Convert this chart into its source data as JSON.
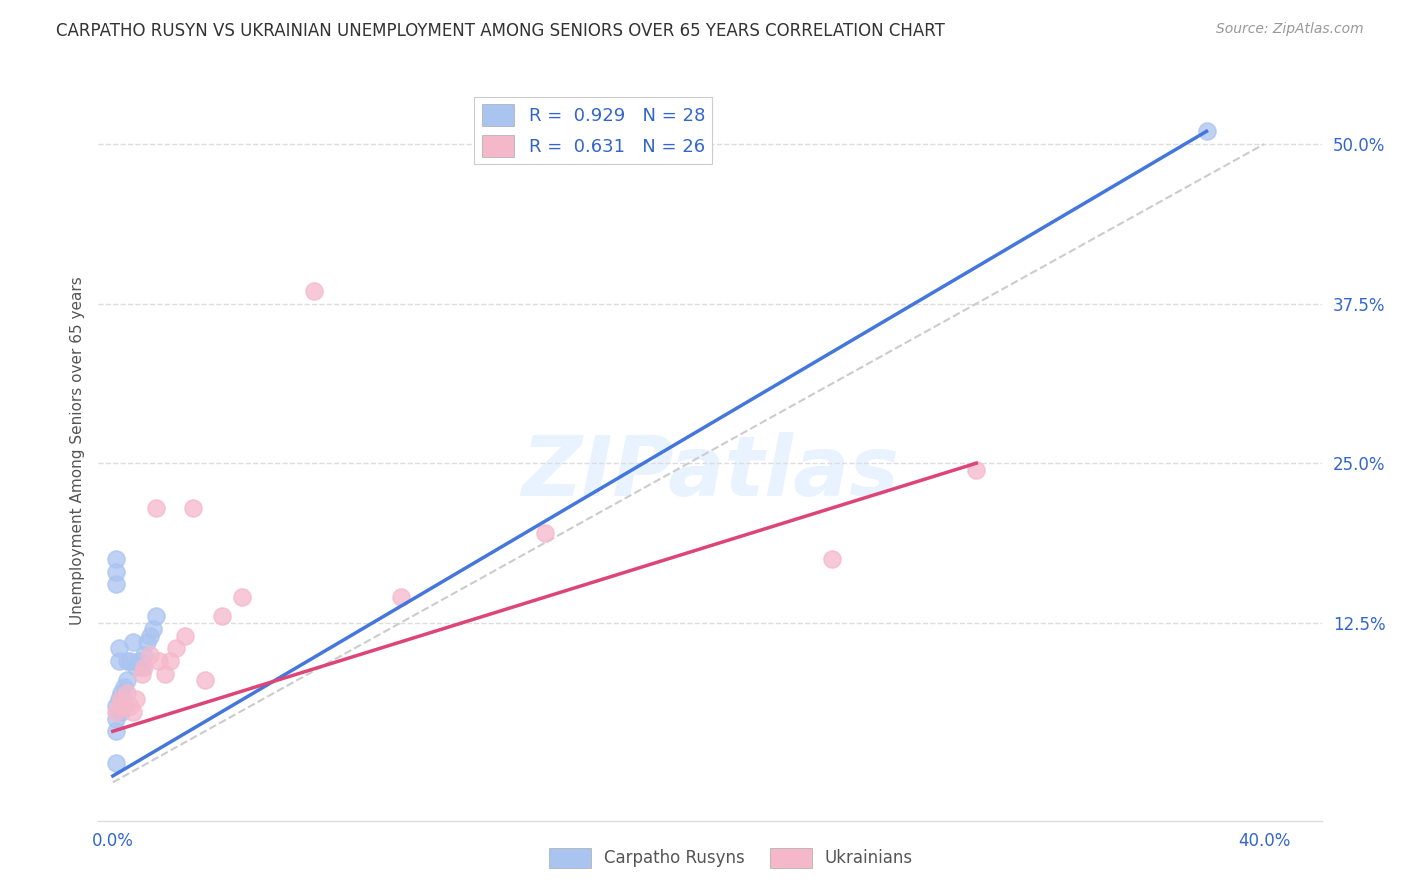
{
  "title": "CARPATHO RUSYN VS UKRAINIAN UNEMPLOYMENT AMONG SENIORS OVER 65 YEARS CORRELATION CHART",
  "source": "Source: ZipAtlas.com",
  "ylabel": "Unemployment Among Seniors over 65 years",
  "xlim": [
    -0.005,
    0.42
  ],
  "ylim": [
    -0.03,
    0.55
  ],
  "xtick_positions": [
    0.0,
    0.4
  ],
  "xtick_labels": [
    "0.0%",
    "40.0%"
  ],
  "yticks_right": [
    0.125,
    0.25,
    0.375,
    0.5
  ],
  "ytick_labels_right": [
    "12.5%",
    "25.0%",
    "37.5%",
    "50.0%"
  ],
  "blue_R": 0.929,
  "blue_N": 28,
  "pink_R": 0.631,
  "pink_N": 26,
  "blue_color": "#aac4f0",
  "pink_color": "#f5b8cb",
  "blue_line_color": "#4477dd",
  "pink_line_color": "#dd4477",
  "ref_line_color": "#cccccc",
  "watermark": "ZIPatlas",
  "blue_scatter_x": [
    0.001,
    0.001,
    0.001,
    0.002,
    0.002,
    0.002,
    0.003,
    0.003,
    0.003,
    0.004,
    0.004,
    0.005,
    0.005,
    0.006,
    0.007,
    0.008,
    0.009,
    0.01,
    0.011,
    0.012,
    0.013,
    0.014,
    0.015,
    0.001,
    0.001,
    0.001,
    0.001,
    0.38
  ],
  "blue_scatter_y": [
    0.155,
    0.165,
    0.175,
    0.095,
    0.105,
    0.065,
    0.055,
    0.065,
    0.07,
    0.06,
    0.075,
    0.08,
    0.095,
    0.095,
    0.11,
    0.09,
    0.095,
    0.09,
    0.1,
    0.11,
    0.115,
    0.12,
    0.13,
    0.015,
    0.06,
    0.05,
    0.04,
    0.51
  ],
  "pink_scatter_x": [
    0.001,
    0.002,
    0.003,
    0.004,
    0.005,
    0.006,
    0.007,
    0.008,
    0.01,
    0.011,
    0.013,
    0.015,
    0.016,
    0.018,
    0.02,
    0.022,
    0.025,
    0.028,
    0.032,
    0.038,
    0.045,
    0.07,
    0.1,
    0.15,
    0.25,
    0.3
  ],
  "pink_scatter_y": [
    0.055,
    0.06,
    0.065,
    0.06,
    0.07,
    0.06,
    0.055,
    0.065,
    0.085,
    0.09,
    0.1,
    0.215,
    0.095,
    0.085,
    0.095,
    0.105,
    0.115,
    0.215,
    0.08,
    0.13,
    0.145,
    0.385,
    0.145,
    0.195,
    0.175,
    0.245
  ],
  "background_color": "#ffffff",
  "grid_color": "#dddddd",
  "blue_line_x": [
    0.0,
    0.38
  ],
  "blue_line_y": [
    0.005,
    0.51
  ],
  "pink_line_x": [
    0.0,
    0.3
  ],
  "pink_line_y": [
    0.04,
    0.25
  ]
}
